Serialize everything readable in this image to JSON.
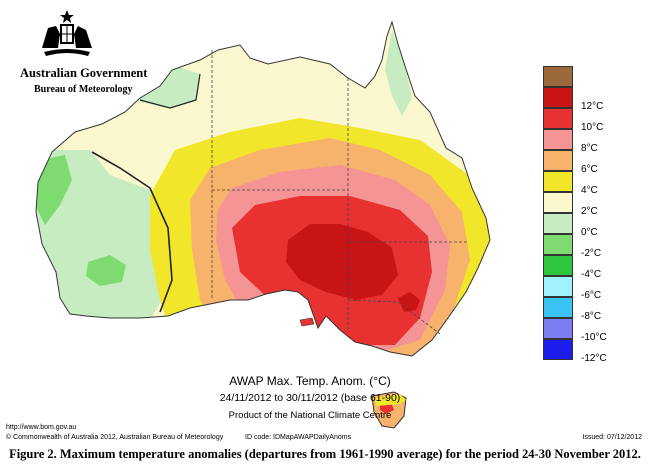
{
  "header": {
    "government": "Australian Government",
    "agency": "Bureau of Meteorology"
  },
  "legend": {
    "units": "°C",
    "items": [
      {
        "label": "",
        "color": "#9c6a3a"
      },
      {
        "label": "12°C",
        "color": "#c81414"
      },
      {
        "label": "10°C",
        "color": "#e83232"
      },
      {
        "label": "8°C",
        "color": "#f49494"
      },
      {
        "label": "6°C",
        "color": "#f7b26b"
      },
      {
        "label": "4°C",
        "color": "#f2e62a"
      },
      {
        "label": "2°C",
        "color": "#fbf8cf"
      },
      {
        "label": "0°C",
        "color": "#c7ecc2"
      },
      {
        "label": "-2°C",
        "color": "#7ddb6f"
      },
      {
        "label": "-4°C",
        "color": "#2ec73b"
      },
      {
        "label": "-6°C",
        "color": "#9ff2ff"
      },
      {
        "label": "-8°C",
        "color": "#39c4f3"
      },
      {
        "label": "-10°C",
        "color": "#7c7cf2"
      },
      {
        "label": "-12°C",
        "color": "#1d1ded"
      }
    ]
  },
  "map": {
    "title_line1": "AWAP Max. Temp. Anom. (°C)",
    "title_line2": "24/11/2012 to 30/11/2012 (base 61-90)",
    "title_line3": "Product of the National Climate Centre",
    "url": "http://www.bom.gov.au"
  },
  "footer": {
    "copyright": "© Commonwealth of Australia 2012, Australian Bureau of Meteorology",
    "id_code": "ID code: IDMapAWAPDailyAnoms",
    "issued": "Issued: 07/12/2012"
  },
  "caption": "Figure 2.  Maximum temperature anomalies (departures from 1961-1990 average) for the period 24-30 November 2012."
}
